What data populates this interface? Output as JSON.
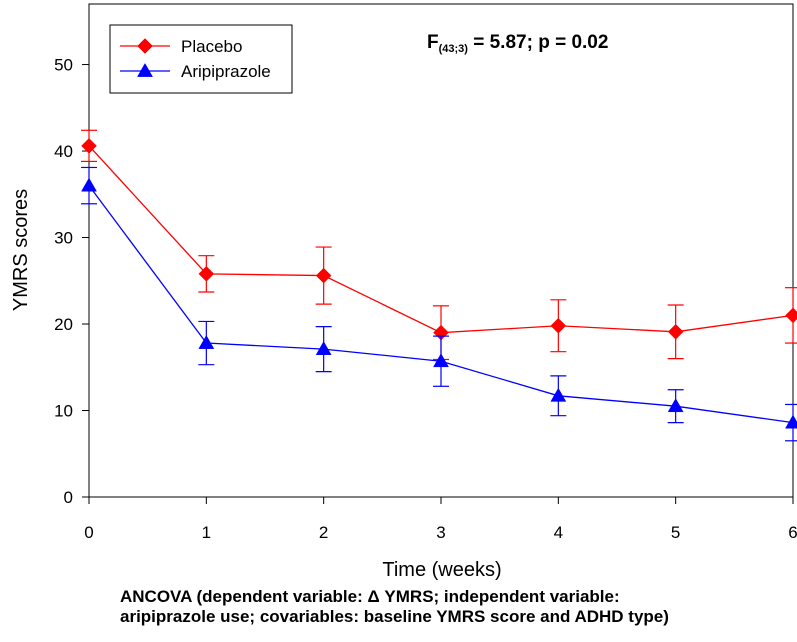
{
  "chart_data": {
    "type": "line",
    "xlabel": "Time (weeks)",
    "ylabel": "YMRS scores",
    "xlim": [
      0,
      6
    ],
    "ylim": [
      0,
      57
    ],
    "xticks": [
      "0",
      "1",
      "2",
      "3",
      "4",
      "5",
      "6"
    ],
    "yticks": [
      "0",
      "10",
      "20",
      "30",
      "40",
      "50"
    ],
    "x": [
      0,
      1,
      2,
      3,
      4,
      5,
      6
    ],
    "grid": false,
    "legend_position": "top-left",
    "annotation": {
      "prefix": "F",
      "subscript": "(43;3)",
      "suffix": " = 5.87; p = 0.02"
    },
    "series": [
      {
        "name": "Placebo",
        "color": "#ff0000",
        "marker": "diamond",
        "values": [
          40.6,
          25.8,
          25.6,
          19.0,
          19.8,
          19.1,
          21.0
        ],
        "errors": [
          1.8,
          2.1,
          3.3,
          3.1,
          3.0,
          3.1,
          3.2
        ]
      },
      {
        "name": "Aripiprazole",
        "color": "#0000ff",
        "marker": "triangle",
        "values": [
          36.0,
          17.8,
          17.1,
          15.7,
          11.7,
          10.5,
          8.6
        ],
        "errors": [
          2.1,
          2.5,
          2.6,
          2.9,
          2.3,
          1.9,
          2.1
        ]
      }
    ]
  },
  "footnote": {
    "line1": "ANCOVA (dependent variable: Δ YMRS; independent variable:",
    "line2": "aripiprazole use; covariables: baseline YMRS score and ADHD type)"
  }
}
